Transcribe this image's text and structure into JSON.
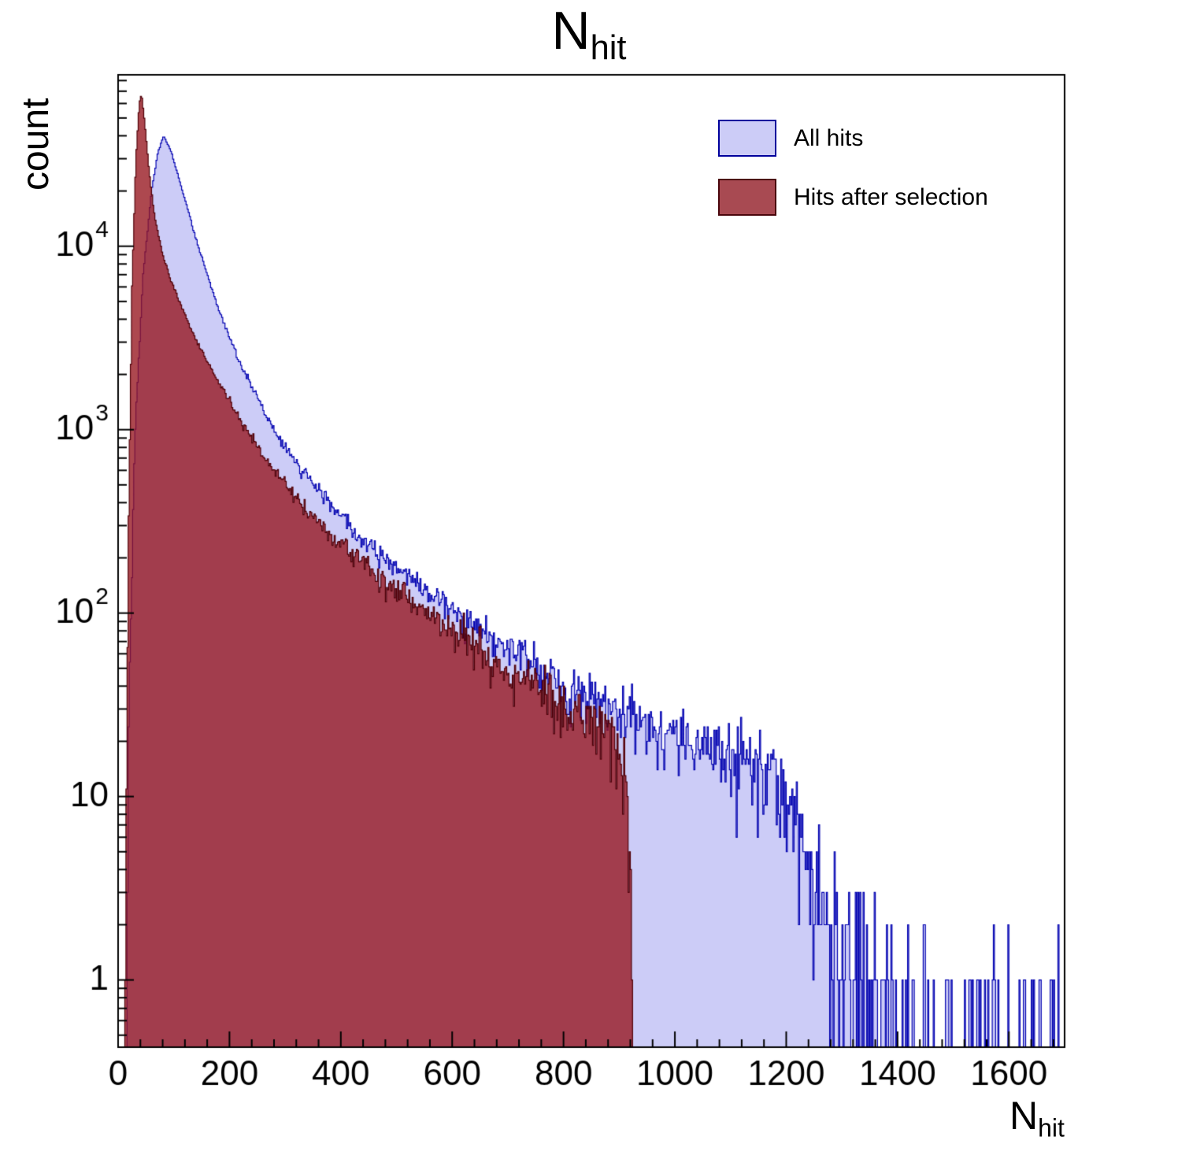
{
  "title": {
    "main": "N",
    "sub": "hit"
  },
  "axes": {
    "y_label": "count",
    "x_label_main": "N",
    "x_label_sub": "hit",
    "x_ticks": [
      0,
      200,
      400,
      600,
      800,
      1000,
      1200,
      1400,
      1600
    ],
    "y_ticks": [
      {
        "v": 1,
        "base": "1",
        "exp": ""
      },
      {
        "v": 10,
        "base": "10",
        "exp": ""
      },
      {
        "v": 100,
        "base": "10",
        "exp": "2"
      },
      {
        "v": 1000,
        "base": "10",
        "exp": "3"
      },
      {
        "v": 10000,
        "base": "10",
        "exp": "4"
      }
    ]
  },
  "legend": {
    "items": [
      {
        "label": "All hits",
        "fill": "#ccccf7",
        "border": "#00009c"
      },
      {
        "label": "Hits after selection",
        "fill": "#a84a52",
        "border": "#4a060c"
      }
    ]
  },
  "chart_data": {
    "type": "bar",
    "subtype": "overlaid-histograms-log-y",
    "title": "N_hit",
    "xlabel": "N_hit",
    "ylabel": "count",
    "x_range": [
      0,
      1700
    ],
    "y_range": [
      0.43,
      86000
    ],
    "y_scale": "log",
    "grid": false,
    "legend_position": "top-right",
    "bin_width": 2,
    "frame_color": "#000000",
    "series": [
      {
        "name": "All hits",
        "fill": "#ccccf7",
        "stroke": "#0000b0",
        "cutoff": 1700,
        "anchors": [
          [
            12,
            0.05
          ],
          [
            20,
            40
          ],
          [
            30,
            900
          ],
          [
            45,
            7000
          ],
          [
            60,
            20000
          ],
          [
            72,
            33000
          ],
          [
            82,
            40000
          ],
          [
            95,
            33000
          ],
          [
            110,
            23000
          ],
          [
            125,
            16000
          ],
          [
            140,
            11000
          ],
          [
            160,
            7000
          ],
          [
            180,
            4600
          ],
          [
            200,
            3200
          ],
          [
            225,
            2100
          ],
          [
            250,
            1500
          ],
          [
            280,
            1000
          ],
          [
            300,
            800
          ],
          [
            330,
            600
          ],
          [
            360,
            470
          ],
          [
            400,
            340
          ],
          [
            450,
            240
          ],
          [
            500,
            180
          ],
          [
            550,
            135
          ],
          [
            600,
            105
          ],
          [
            650,
            82
          ],
          [
            700,
            64
          ],
          [
            750,
            52
          ],
          [
            800,
            42
          ],
          [
            850,
            34
          ],
          [
            900,
            28
          ],
          [
            950,
            24
          ],
          [
            1000,
            21
          ],
          [
            1050,
            18
          ],
          [
            1100,
            17
          ],
          [
            1150,
            15
          ],
          [
            1190,
            12
          ],
          [
            1220,
            7
          ],
          [
            1250,
            3
          ],
          [
            1280,
            1.5
          ],
          [
            1320,
            0.7
          ],
          [
            1400,
            0.4
          ],
          [
            1500,
            0.25
          ],
          [
            1600,
            0.25
          ],
          [
            1700,
            0.3
          ]
        ]
      },
      {
        "name": "Hits after selection",
        "fill": "rgba(150,20,30,0.78)",
        "stroke": "#500008",
        "cutoff": 925,
        "anchors": [
          [
            10,
            0.05
          ],
          [
            18,
            200
          ],
          [
            25,
            6000
          ],
          [
            32,
            30000
          ],
          [
            38,
            60000
          ],
          [
            42,
            68000
          ],
          [
            48,
            47000
          ],
          [
            55,
            27000
          ],
          [
            65,
            15000
          ],
          [
            80,
            9000
          ],
          [
            95,
            6500
          ],
          [
            110,
            5000
          ],
          [
            130,
            3600
          ],
          [
            150,
            2700
          ],
          [
            175,
            1950
          ],
          [
            200,
            1450
          ],
          [
            230,
            1000
          ],
          [
            260,
            730
          ],
          [
            300,
            500
          ],
          [
            340,
            360
          ],
          [
            380,
            270
          ],
          [
            420,
            215
          ],
          [
            470,
            160
          ],
          [
            520,
            120
          ],
          [
            570,
            92
          ],
          [
            620,
            72
          ],
          [
            670,
            57
          ],
          [
            720,
            45
          ],
          [
            770,
            37
          ],
          [
            820,
            30
          ],
          [
            860,
            25
          ],
          [
            890,
            21
          ],
          [
            905,
            16
          ],
          [
            913,
            10
          ],
          [
            918,
            5
          ],
          [
            921,
            2.5
          ],
          [
            923,
            1
          ],
          [
            925,
            0.3
          ]
        ]
      }
    ]
  }
}
